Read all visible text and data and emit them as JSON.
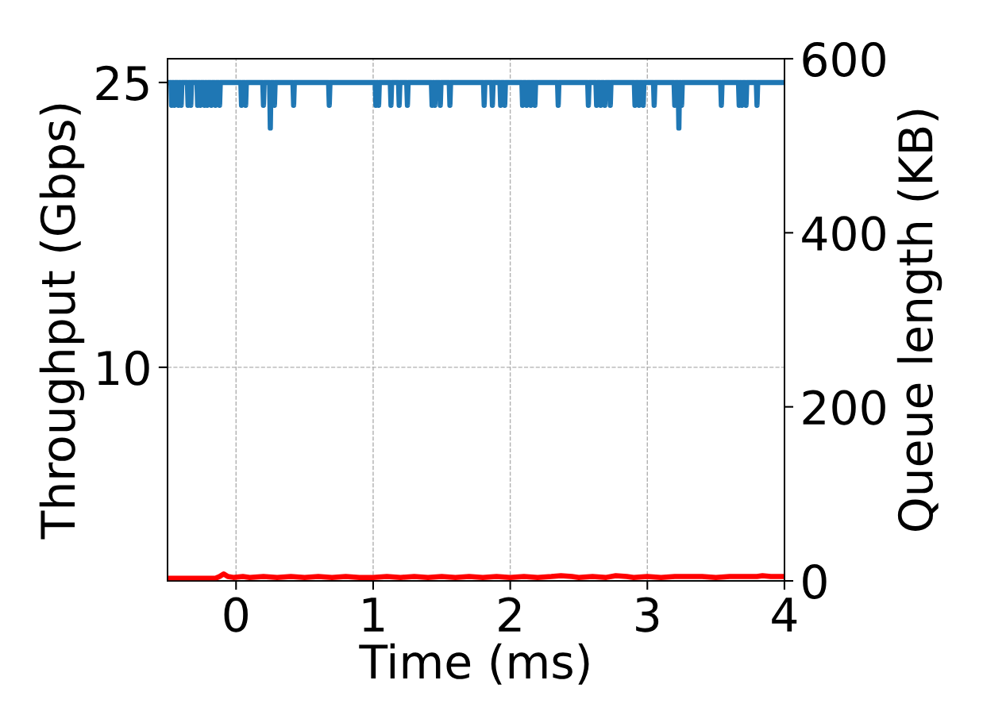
{
  "chart_data": {
    "type": "line",
    "xlabel": "Time (ms)",
    "ylabel": "Throughput (Gbps)",
    "y2label": "Queue length (KB)",
    "xlim": [
      -0.5,
      4
    ],
    "xticks": [
      0,
      1,
      2,
      3,
      4
    ],
    "ylim": [
      -1.25,
      26.25
    ],
    "yticks": [
      10,
      25
    ],
    "y2lim": [
      0,
      600
    ],
    "y2ticks": [
      0,
      200,
      400,
      600
    ],
    "grid": true,
    "series": [
      {
        "color": "#1f77b4",
        "x": [
          -0.5,
          -0.475,
          -0.47,
          -0.465,
          -0.455,
          -0.45,
          -0.445,
          -0.425,
          -0.42,
          -0.415,
          -0.405,
          -0.4,
          -0.395,
          -0.355,
          -0.35,
          -0.345,
          -0.335,
          -0.33,
          -0.325,
          -0.285,
          -0.28,
          -0.275,
          -0.265,
          -0.26,
          -0.255,
          -0.235,
          -0.23,
          -0.225,
          -0.215,
          -0.21,
          -0.205,
          -0.185,
          -0.18,
          -0.175,
          -0.155,
          -0.15,
          -0.145,
          -0.125,
          -0.12,
          -0.115,
          0.035,
          0.04,
          0.045,
          0.065,
          0.07,
          0.075,
          0.195,
          0.2,
          0.205,
          0.245,
          0.25,
          0.255,
          0.275,
          0.28,
          0.285,
          0.415,
          0.42,
          0.425,
          0.675,
          0.68,
          0.685,
          1.015,
          1.02,
          1.025,
          1.035,
          1.04,
          1.045,
          1.125,
          1.13,
          1.135,
          1.185,
          1.19,
          1.195,
          1.245,
          1.25,
          1.255,
          1.425,
          1.43,
          1.435,
          1.445,
          1.45,
          1.455,
          1.485,
          1.49,
          1.495,
          1.555,
          1.56,
          1.565,
          1.805,
          1.81,
          1.815,
          1.865,
          1.87,
          1.875,
          1.925,
          1.93,
          1.935,
          1.955,
          1.96,
          1.965,
          2.085,
          2.09,
          2.095,
          2.115,
          2.12,
          2.125,
          2.145,
          2.15,
          2.155,
          2.175,
          2.18,
          2.185,
          2.345,
          2.35,
          2.355,
          2.565,
          2.57,
          2.575,
          2.625,
          2.63,
          2.635,
          2.655,
          2.66,
          2.665,
          2.685,
          2.69,
          2.695,
          2.725,
          2.73,
          2.735,
          2.905,
          2.91,
          2.915,
          2.935,
          2.94,
          2.945,
          2.965,
          2.97,
          2.975,
          3.045,
          3.05,
          3.055,
          3.195,
          3.2,
          3.205,
          3.225,
          3.23,
          3.235,
          3.245,
          3.25,
          3.255,
          3.535,
          3.54,
          3.545,
          3.665,
          3.67,
          3.675,
          3.685,
          3.69,
          3.695,
          3.715,
          3.72,
          3.725,
          3.795,
          3.8,
          3.805,
          4
        ],
        "values": [
          25,
          25,
          23.8,
          25,
          25,
          23.8,
          25,
          25,
          23.8,
          25,
          25,
          23.8,
          25,
          25,
          23.8,
          25,
          25,
          23.8,
          25,
          25,
          23.8,
          25,
          25,
          23.8,
          25,
          25,
          23.8,
          25,
          25,
          23.8,
          25,
          25,
          23.8,
          25,
          25,
          23.8,
          25,
          25,
          23.8,
          25,
          25,
          23.8,
          25,
          25,
          23.8,
          25,
          25,
          23.8,
          25,
          25,
          22.6,
          25,
          25,
          23.8,
          25,
          25,
          23.8,
          25,
          25,
          23.8,
          25,
          25,
          23.8,
          25,
          25,
          23.8,
          25,
          25,
          23.8,
          25,
          25,
          23.8,
          25,
          25,
          23.8,
          25,
          25,
          23.8,
          25,
          25,
          23.8,
          25,
          25,
          23.8,
          25,
          25,
          23.8,
          25,
          25,
          23.8,
          25,
          25,
          23.8,
          25,
          25,
          23.8,
          25,
          25,
          23.8,
          25,
          25,
          23.8,
          25,
          25,
          23.8,
          25,
          25,
          23.8,
          25,
          25,
          23.8,
          25,
          25,
          23.8,
          25,
          25,
          23.8,
          25,
          25,
          23.8,
          25,
          25,
          23.8,
          25,
          25,
          23.8,
          25,
          25,
          23.8,
          25,
          25,
          23.8,
          25,
          25,
          23.8,
          25,
          25,
          23.8,
          25,
          25,
          23.8,
          25,
          25,
          23.8,
          25,
          25,
          22.6,
          25,
          25,
          23.8,
          25,
          25,
          23.8,
          25,
          25,
          23.8,
          25,
          25,
          23.8,
          25,
          25,
          23.8,
          25,
          25,
          23.8,
          25,
          25
        ]
      },
      {
        "color": "#ff0000",
        "axis": "y2",
        "x": [
          -0.5,
          -0.4,
          -0.3,
          -0.2,
          -0.15,
          -0.12,
          -0.09,
          -0.06,
          -0.02,
          0.05,
          0.1,
          0.2,
          0.3,
          0.4,
          0.5,
          0.6,
          0.7,
          0.8,
          0.9,
          1.0,
          1.1,
          1.2,
          1.3,
          1.4,
          1.5,
          1.6,
          1.7,
          1.8,
          1.9,
          2.0,
          2.1,
          2.2,
          2.3,
          2.37,
          2.45,
          2.5,
          2.6,
          2.7,
          2.77,
          2.85,
          2.9,
          3.0,
          3.1,
          3.2,
          3.3,
          3.4,
          3.5,
          3.6,
          3.7,
          3.8,
          3.84,
          3.9,
          4.0
        ],
        "values": [
          3,
          3,
          3,
          3,
          3,
          5,
          8,
          5,
          4,
          5,
          4,
          5,
          4,
          5,
          4,
          5,
          4,
          5,
          4,
          4,
          5,
          4,
          5,
          4,
          5,
          4,
          5,
          4,
          5,
          4,
          5,
          4,
          5,
          6,
          5,
          4,
          5,
          4,
          6,
          5,
          4,
          5,
          4,
          5,
          5,
          5,
          4,
          5,
          5,
          5,
          6,
          5,
          5
        ]
      }
    ]
  }
}
